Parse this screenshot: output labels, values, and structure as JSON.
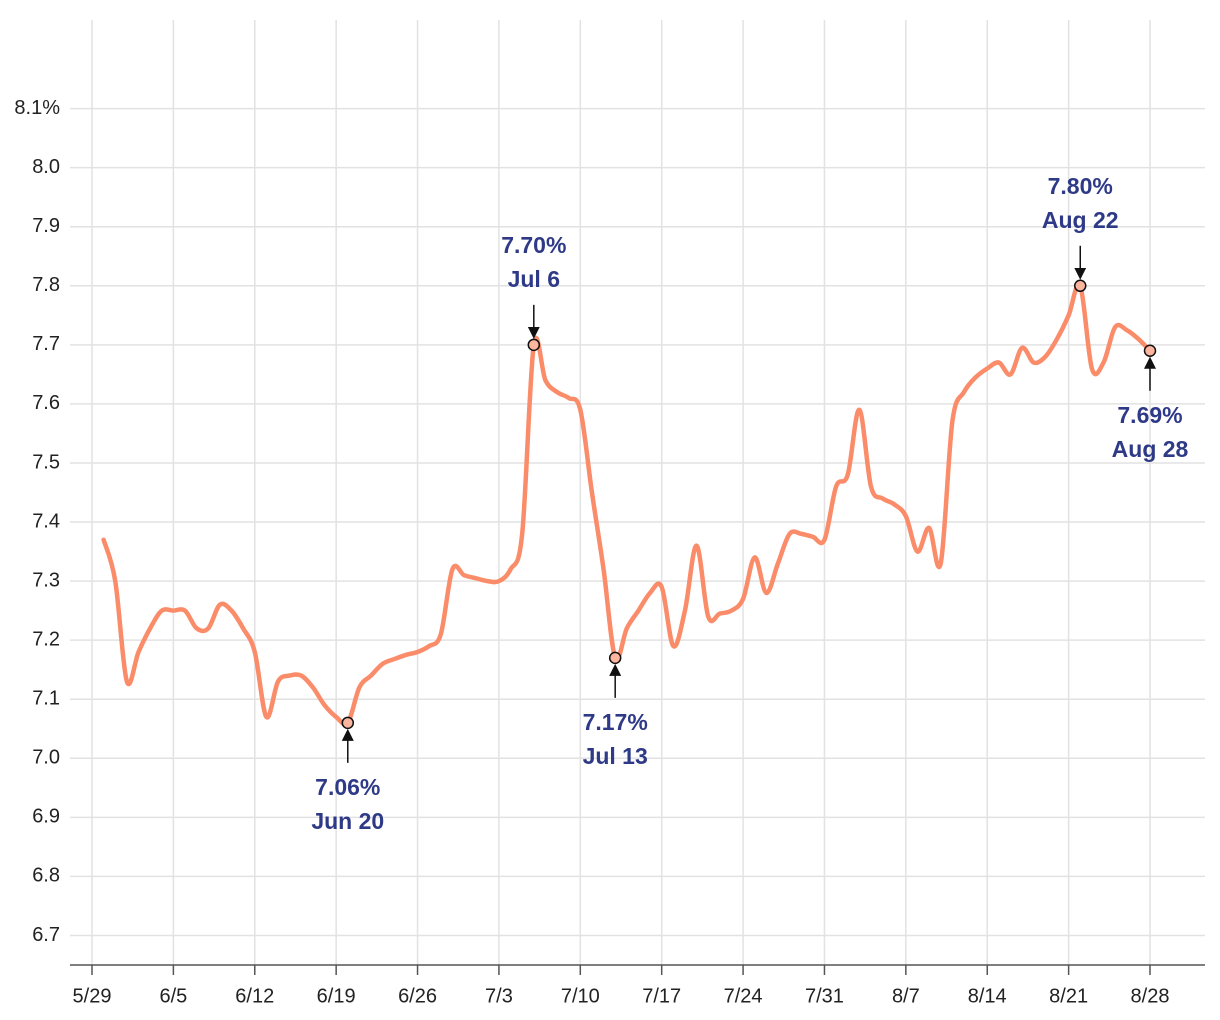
{
  "chart_data": {
    "type": "line",
    "categories": [
      "5/29",
      null,
      null,
      null,
      null,
      null,
      null,
      "6/5",
      null,
      null,
      null,
      null,
      null,
      null,
      "6/12",
      null,
      null,
      null,
      null,
      null,
      null,
      "6/19",
      null,
      null,
      null,
      null,
      null,
      null,
      "6/26",
      null,
      null,
      null,
      null,
      null,
      null,
      "7/3",
      null,
      null,
      null,
      null,
      null,
      null,
      "7/10",
      null,
      null,
      null,
      null,
      null,
      null,
      "7/17",
      null,
      null,
      null,
      null,
      null,
      null,
      "7/24",
      null,
      null,
      null,
      null,
      null,
      null,
      "7/31",
      null,
      null,
      null,
      null,
      null,
      null,
      "8/7",
      null,
      null,
      null,
      null,
      null,
      null,
      "8/14",
      null,
      null,
      null,
      null,
      null,
      null,
      "8/21",
      null,
      null,
      null,
      null,
      null,
      null,
      "8/28"
    ],
    "series": [
      {
        "color": "#fa8c6a",
        "values": [
          null,
          7.37,
          7.3,
          7.13,
          7.18,
          7.22,
          7.25,
          7.25,
          7.25,
          7.22,
          7.22,
          7.26,
          7.25,
          7.22,
          7.18,
          7.07,
          7.13,
          7.14,
          7.14,
          7.12,
          7.09,
          7.07,
          7.06,
          7.12,
          7.14,
          7.16,
          7.168,
          7.175,
          7.18,
          7.19,
          7.21,
          7.32,
          7.31,
          7.305,
          7.3,
          7.3,
          7.32,
          7.38,
          7.7,
          7.64,
          7.62,
          7.61,
          7.59,
          7.45,
          7.32,
          7.17,
          7.22,
          7.25,
          7.28,
          7.29,
          7.19,
          7.25,
          7.36,
          7.24,
          7.245,
          7.25,
          7.27,
          7.34,
          7.28,
          7.33,
          7.38,
          7.38,
          7.375,
          7.37,
          7.46,
          7.48,
          7.59,
          7.46,
          7.44,
          7.43,
          7.41,
          7.35,
          7.39,
          7.33,
          7.57,
          7.62,
          7.645,
          7.66,
          7.67,
          7.65,
          7.695,
          7.67,
          7.68,
          7.71,
          7.75,
          7.8,
          7.66,
          7.67,
          7.73,
          7.725,
          7.71,
          7.69
        ]
      }
    ],
    "ylim": [
      6.65,
      8.25
    ],
    "yticks": [
      6.7,
      6.8,
      6.9,
      {
        "value": 7.0,
        "label": "7.0"
      },
      7.1,
      7.2,
      7.3,
      7.4,
      7.5,
      7.6,
      7.7,
      7.8,
      7.9,
      {
        "value": 8.0,
        "label": "8.0"
      },
      {
        "value": 8.1,
        "label": "8.1%"
      }
    ],
    "grid": true,
    "annotations": [
      {
        "value": 7.06,
        "label": "7.06%",
        "date": "Jun 20",
        "position": "below"
      },
      {
        "value": 7.7,
        "label": "7.70%",
        "date": "Jul 6",
        "position": "above"
      },
      {
        "value": 7.17,
        "label": "7.17%",
        "date": "Jul 13",
        "position": "below"
      },
      {
        "value": 7.8,
        "label": "7.80%",
        "date": "Aug 22",
        "position": "above"
      },
      {
        "value": 7.69,
        "label": "7.69%",
        "date": "Aug 28",
        "position": "below"
      }
    ]
  }
}
